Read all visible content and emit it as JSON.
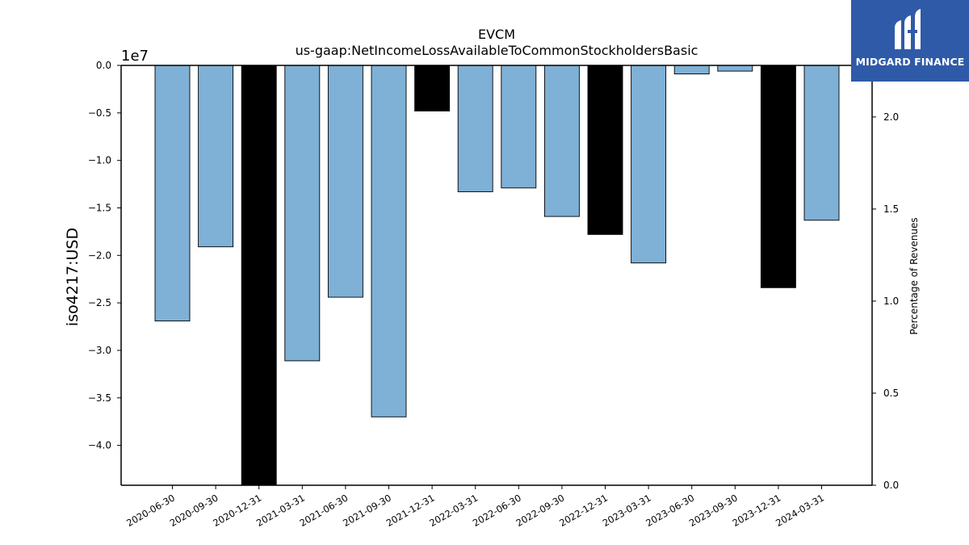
{
  "chart_data": {
    "type": "bar",
    "title": "EVCM",
    "subtitle": "us-gaap:NetIncomeLossAvailableToCommonStockholdersBasic",
    "ylabel": "iso4217:USD",
    "y_offset_label": "1e7",
    "y2label": "Percentage of Revenues",
    "ylim": [
      -4.42,
      0.0
    ],
    "y_unit_multiplier": 10000000,
    "y2lim": [
      0.0,
      2.28
    ],
    "yticks": [
      "0.0",
      "−0.5",
      "−1.0",
      "−1.5",
      "−2.0",
      "−2.5",
      "−3.0",
      "−3.5",
      "−4.0"
    ],
    "y2ticks": [
      "0.0",
      "0.5",
      "1.0",
      "1.5",
      "2.0"
    ],
    "grid": false,
    "categories": [
      "2020-06-30",
      "2020-09-30",
      "2020-12-31",
      "2021-03-31",
      "2021-06-30",
      "2021-09-30",
      "2021-12-31",
      "2022-03-31",
      "2022-06-30",
      "2022-09-30",
      "2022-12-31",
      "2023-03-31",
      "2023-06-30",
      "2023-09-30",
      "2023-12-31",
      "2024-03-31"
    ],
    "values": [
      -26900000,
      -19100000,
      -44300000,
      -31100000,
      -24400000,
      -37000000,
      -4800000,
      -13300000,
      -12900000,
      -15900000,
      -17800000,
      -20800000,
      -900000,
      -600000,
      -23400000,
      -16300000
    ],
    "bar_colors": [
      "#7fb0d5",
      "#7fb0d5",
      "#000000",
      "#7fb0d5",
      "#7fb0d5",
      "#7fb0d5",
      "#000000",
      "#7fb0d5",
      "#7fb0d5",
      "#7fb0d5",
      "#000000",
      "#7fb0d5",
      "#7fb0d5",
      "#7fb0d5",
      "#000000",
      "#7fb0d5"
    ]
  },
  "logo": {
    "text": "MIDGARD FINANCE",
    "background": "#2f5aa8",
    "icon": "midgard-logo-icon"
  }
}
